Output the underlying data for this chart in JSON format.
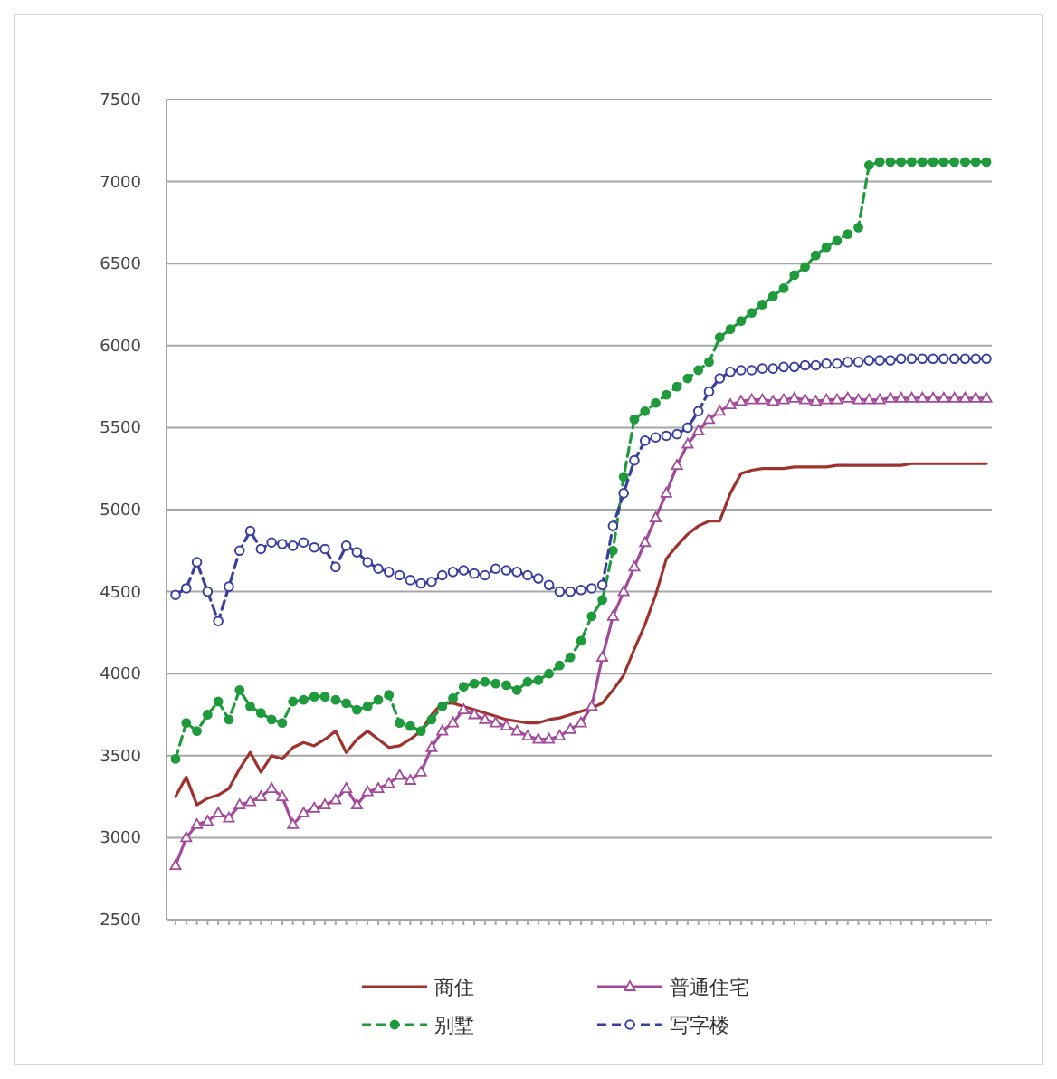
{
  "chart_data": {
    "type": "line",
    "categories": [
      null,
      null,
      null,
      null,
      null,
      null,
      null,
      null,
      null,
      null,
      null,
      null,
      null,
      null,
      null,
      null,
      null,
      null,
      null,
      null,
      null,
      null,
      null,
      null,
      null,
      null,
      null,
      null,
      null,
      null,
      null,
      null,
      null,
      null,
      null,
      null,
      null,
      null,
      null,
      null,
      null,
      null,
      null,
      null,
      null,
      null,
      null,
      null,
      null,
      null,
      null,
      null,
      null,
      null,
      null,
      null,
      null,
      null,
      null,
      null,
      null,
      null,
      null,
      null,
      null,
      null,
      null,
      null,
      null,
      null,
      null,
      null,
      null,
      null,
      null,
      null,
      null
    ],
    "ylim": [
      2500,
      7500
    ],
    "yticks": [
      2500,
      3000,
      3500,
      4000,
      4500,
      5000,
      5500,
      6000,
      6500,
      7000,
      7500
    ],
    "grid": "y",
    "legend": "bottom",
    "series": [
      {
        "name": "商住",
        "color": "#a0322d",
        "marker": "none",
        "line_style": "solid",
        "values": [
          3250,
          3370,
          3200,
          3240,
          3260,
          3300,
          3420,
          3520,
          3400,
          3500,
          3480,
          3550,
          3580,
          3560,
          3600,
          3650,
          3520,
          3600,
          3650,
          3600,
          3550,
          3560,
          3600,
          3650,
          3750,
          3820,
          3820,
          3800,
          3780,
          3760,
          3740,
          3720,
          3710,
          3700,
          3700,
          3720,
          3730,
          3750,
          3770,
          3790,
          3820,
          3900,
          3990,
          4150,
          4300,
          4480,
          4700,
          4780,
          4850,
          4900,
          4930,
          4930,
          5100,
          5220,
          5240,
          5250,
          5250,
          5250,
          5260,
          5260,
          5260,
          5260,
          5270,
          5270,
          5270,
          5270,
          5270,
          5270,
          5270,
          5280,
          5280,
          5280,
          5280,
          5280,
          5280,
          5280,
          5280
        ]
      },
      {
        "name": "普通住宅",
        "color": "#a24a9a",
        "marker": "triangle",
        "line_style": "solid",
        "values": [
          2830,
          3000,
          3080,
          3100,
          3150,
          3120,
          3200,
          3220,
          3250,
          3300,
          3250,
          3080,
          3150,
          3180,
          3200,
          3230,
          3300,
          3200,
          3280,
          3300,
          3330,
          3380,
          3350,
          3400,
          3550,
          3650,
          3700,
          3780,
          3750,
          3720,
          3700,
          3680,
          3650,
          3620,
          3600,
          3600,
          3620,
          3660,
          3700,
          3800,
          4100,
          4350,
          4500,
          4650,
          4800,
          4950,
          5100,
          5270,
          5400,
          5480,
          5550,
          5600,
          5640,
          5660,
          5670,
          5670,
          5660,
          5670,
          5680,
          5670,
          5660,
          5670,
          5670,
          5680,
          5670,
          5670,
          5670,
          5680,
          5680,
          5680,
          5680,
          5680,
          5680,
          5680,
          5680,
          5680,
          5680
        ]
      },
      {
        "name": "别墅",
        "color": "#1f9a3c",
        "marker": "circle",
        "line_style": "dashed",
        "values": [
          3480,
          3700,
          3650,
          3750,
          3830,
          3720,
          3900,
          3800,
          3760,
          3720,
          3700,
          3830,
          3840,
          3860,
          3860,
          3840,
          3820,
          3780,
          3800,
          3840,
          3870,
          3700,
          3680,
          3650,
          3720,
          3800,
          3850,
          3920,
          3940,
          3950,
          3940,
          3930,
          3900,
          3950,
          3960,
          4000,
          4050,
          4100,
          4200,
          4350,
          4450,
          4750,
          5200,
          5550,
          5600,
          5650,
          5700,
          5750,
          5800,
          5850,
          5900,
          6050,
          6100,
          6150,
          6200,
          6250,
          6300,
          6350,
          6430,
          6480,
          6550,
          6600,
          6640,
          6680,
          6720,
          7100,
          7120,
          7120,
          7120,
          7120,
          7120,
          7120,
          7120,
          7120,
          7120,
          7120,
          7120
        ]
      },
      {
        "name": "写字楼",
        "color": "#3a3f9e",
        "marker": "circle_open",
        "line_style": "dashed",
        "values": [
          4480,
          4520,
          4680,
          4500,
          4320,
          4530,
          4750,
          4870,
          4760,
          4800,
          4790,
          4780,
          4800,
          4770,
          4760,
          4650,
          4780,
          4740,
          4680,
          4640,
          4620,
          4600,
          4570,
          4550,
          4560,
          4600,
          4620,
          4630,
          4610,
          4600,
          4640,
          4630,
          4620,
          4600,
          4580,
          4540,
          4500,
          4500,
          4510,
          4520,
          4540,
          4900,
          5100,
          5300,
          5420,
          5440,
          5450,
          5460,
          5500,
          5600,
          5720,
          5800,
          5840,
          5850,
          5850,
          5860,
          5860,
          5870,
          5870,
          5880,
          5880,
          5890,
          5890,
          5900,
          5900,
          5910,
          5910,
          5910,
          5920,
          5920,
          5920,
          5920,
          5920,
          5920,
          5920,
          5920,
          5920
        ]
      }
    ]
  }
}
